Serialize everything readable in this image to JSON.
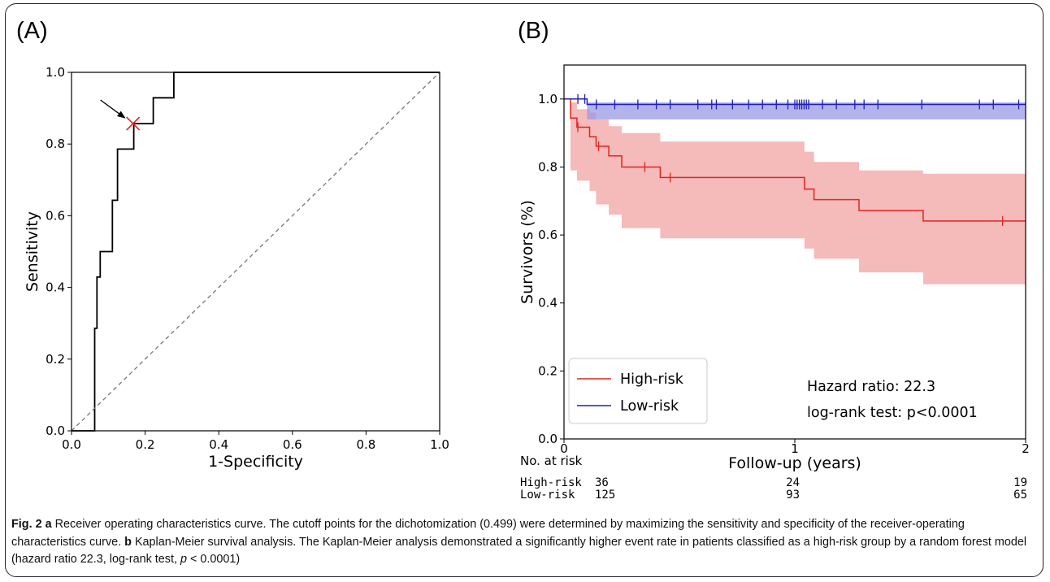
{
  "panels": {
    "a_label": "(A)",
    "b_label": "(B)"
  },
  "caption": {
    "fig": "Fig. 2",
    "a_key": "a",
    "a_text": " Receiver operating characteristics curve. The cutoff points for the dichotomization (0.499) were determined by maximizing the sensitivity and specificity of the receiver-operating characteristics curve. ",
    "b_key": "b",
    "b_text": " Kaplan-Meier survival analysis. The Kaplan-Meier analysis demonstrated a significantly higher event rate in patients classified as a high-risk group by a random forest model (hazard ratio 22.3, log-rank test, ",
    "p_symbol": "p",
    "end_text": " < 0.0001)"
  },
  "chart_data": [
    {
      "type": "line",
      "xlabel": "1-Specificity",
      "ylabel": "Sensitivity",
      "xlim": [
        0,
        1
      ],
      "ylim": [
        0,
        1
      ],
      "xticks": [
        "0.0",
        "0.2",
        "0.4",
        "0.6",
        "0.8",
        "1.0"
      ],
      "yticks": [
        "0.0",
        "0.2",
        "0.4",
        "0.6",
        "0.8",
        "1.0"
      ],
      "grid": false,
      "series": [
        {
          "x": [
            0.0,
            0.063,
            0.063,
            0.069,
            0.069,
            0.078,
            0.078,
            0.091,
            0.091,
            0.111,
            0.111,
            0.125,
            0.125,
            0.141,
            0.141,
            0.169,
            0.169,
            0.222,
            0.222,
            0.278,
            0.278,
            1.0
          ],
          "y": [
            0.0,
            0.0,
            0.286,
            0.286,
            0.429,
            0.429,
            0.5,
            0.5,
            0.5,
            0.5,
            0.643,
            0.643,
            0.786,
            0.786,
            0.786,
            0.786,
            0.857,
            0.857,
            0.929,
            0.929,
            1.0,
            1.0
          ],
          "color": "#000000"
        },
        {
          "x": [
            0,
            1
          ],
          "y": [
            0,
            1
          ],
          "color": "#777777",
          "style": "dashed"
        }
      ],
      "cutoff_point": {
        "x": 0.167,
        "y": 0.857,
        "color": "#e0251f"
      }
    },
    {
      "type": "line",
      "xlabel": "Follow-up (years)",
      "ylabel": "Survivors (%)",
      "xlim": [
        0,
        2
      ],
      "ylim": [
        0,
        1.1
      ],
      "xticks": [
        "0",
        "1",
        "2"
      ],
      "yticks": [
        "0.0",
        "0.2",
        "0.4",
        "0.6",
        "0.8",
        "1.0"
      ],
      "grid": false,
      "legend_placement": "bottom-left",
      "series": [
        {
          "name": "High-risk",
          "color": "#e0251f",
          "band_color": "#f2a3a3",
          "x": [
            0,
            0.028,
            0.056,
            0.111,
            0.139,
            0.194,
            0.25,
            0.417,
            1.042,
            1.083,
            1.278,
            1.556,
            2.0
          ],
          "y": [
            1.0,
            0.944,
            0.917,
            0.889,
            0.861,
            0.833,
            0.8,
            0.769,
            0.735,
            0.704,
            0.672,
            0.641,
            0.641
          ],
          "ci_lower": [
            1.0,
            0.79,
            0.76,
            0.73,
            0.69,
            0.66,
            0.62,
            0.59,
            0.56,
            0.53,
            0.49,
            0.455,
            0.455
          ],
          "ci_upper": [
            1.0,
            0.99,
            0.97,
            0.96,
            0.94,
            0.92,
            0.9,
            0.875,
            0.845,
            0.815,
            0.79,
            0.78,
            0.78
          ],
          "censored_x": [
            0.06,
            0.15,
            0.35,
            0.46,
            1.9
          ]
        },
        {
          "name": "Low-risk",
          "color": "#1f1fb8",
          "band_color": "#9a9ae6",
          "x": [
            0,
            0.1,
            2.0
          ],
          "y": [
            1.0,
            0.984,
            0.984
          ],
          "ci_lower": [
            1.0,
            0.94,
            0.94
          ],
          "ci_upper": [
            1.0,
            0.99,
            0.99
          ],
          "censored_x": [
            0.06,
            0.09,
            0.14,
            0.22,
            0.32,
            0.4,
            0.46,
            0.58,
            0.64,
            0.66,
            0.73,
            0.8,
            0.86,
            0.92,
            0.97,
            1.0,
            1.01,
            1.02,
            1.03,
            1.04,
            1.05,
            1.06,
            1.12,
            1.18,
            1.26,
            1.3,
            1.36,
            1.55,
            1.8,
            1.86,
            1.97
          ]
        }
      ],
      "annotations": [
        "Hazard ratio: 22.3",
        "log-rank test: p<0.0001"
      ],
      "risk_table": {
        "label": "No. at risk",
        "rows": [
          {
            "name": "High-risk",
            "values": [
              "36",
              "24",
              "19"
            ]
          },
          {
            "name": "Low-risk",
            "values": [
              "125",
              "93",
              "65"
            ]
          }
        ]
      }
    }
  ]
}
